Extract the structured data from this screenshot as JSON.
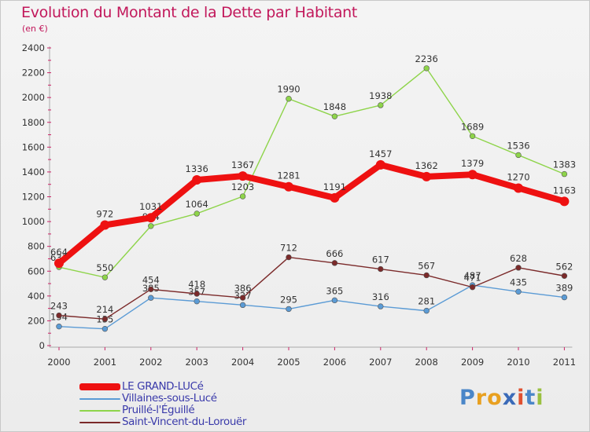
{
  "title": "Evolution du Montant de la Dette par Habitant",
  "unit": "(en €)",
  "brand": {
    "letters": [
      "P",
      "r",
      "o",
      "x",
      "i",
      "t",
      "i"
    ],
    "colors": [
      "#4a86c8",
      "#e8a020",
      "#e8a020",
      "#3a6ab8",
      "#e05030",
      "#4a86c8",
      "#9ac040"
    ]
  },
  "chart_data": {
    "type": "line",
    "title": "Evolution du Montant de la Dette par Habitant",
    "xlabel": "",
    "ylabel": "(en €)",
    "categories": [
      "2000",
      "2001",
      "2002",
      "2003",
      "2004",
      "2005",
      "2006",
      "2007",
      "2008",
      "2009",
      "2010",
      "2011"
    ],
    "ylim": [
      0,
      2400
    ],
    "yticks": [
      "0",
      "200",
      "400",
      "600",
      "800",
      "1000",
      "1200",
      "1400",
      "1600",
      "1800",
      "2000",
      "2200",
      "2400"
    ],
    "grid": false,
    "legend_position": "bottom-left",
    "series": [
      {
        "name": "Villaines-sous-Lucé",
        "color": "#5b9bd5",
        "values": [
          154,
          135,
          385,
          357,
          327,
          295,
          365,
          316,
          281,
          487,
          435,
          389
        ],
        "labels": [
          "154",
          "135",
          "385",
          "357",
          "327",
          "295",
          "365",
          "316",
          "281",
          "487",
          "435",
          "389"
        ]
      },
      {
        "name": "Pruillé-l'Éguillé",
        "color": "#8ed44a",
        "values": [
          633,
          550,
          964,
          1064,
          1203,
          1990,
          1848,
          1938,
          2236,
          1689,
          1536,
          1383
        ],
        "labels": [
          "633",
          "550",
          "964",
          "1064",
          "1203",
          "1990",
          "1848",
          "1938",
          "2236",
          "1689",
          "1536",
          "1383"
        ]
      },
      {
        "name": "Saint-Vincent-du-Lorouër",
        "color": "#7b2a2a",
        "values": [
          243,
          214,
          454,
          418,
          386,
          712,
          666,
          617,
          567,
          471,
          628,
          562
        ],
        "labels": [
          "243",
          "214",
          "454",
          "418",
          "386",
          "712",
          "666",
          "617",
          "567",
          "471",
          "628",
          "562"
        ]
      },
      {
        "name": "LE GRAND-LUCé",
        "color": "#ee1111",
        "values": [
          664,
          972,
          1031,
          1336,
          1367,
          1281,
          1191,
          1457,
          1362,
          1379,
          1270,
          1163
        ],
        "labels": [
          "664",
          "972",
          "1031",
          "1336",
          "1367",
          "1281",
          "1191",
          "1457",
          "1362",
          "1379",
          "1270",
          "1163"
        ]
      }
    ],
    "legend": [
      "LE GRAND-LUCé",
      "Villaines-sous-Lucé",
      "Pruillé-l'Éguillé",
      "Saint-Vincent-du-Lorouër"
    ]
  }
}
